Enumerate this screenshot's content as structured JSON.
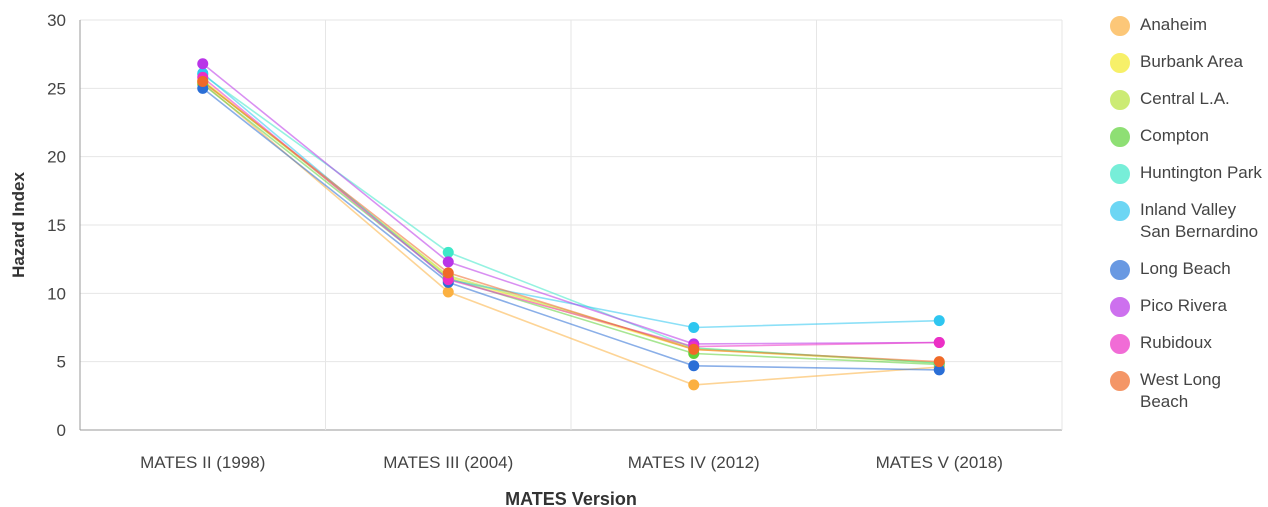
{
  "chart_data": {
    "type": "line",
    "title": "",
    "xlabel": "MATES Version",
    "ylabel": "Hazard Index",
    "categories": [
      "MATES II (1998)",
      "MATES III (2004)",
      "MATES IV (2012)",
      "MATES V (2018)"
    ],
    "ylim": [
      0,
      30
    ],
    "yticks": [
      0,
      5,
      10,
      15,
      20,
      25,
      30
    ],
    "grid": true,
    "legend_position": "right",
    "series": [
      {
        "name": "Anaheim",
        "color": "#fbb040",
        "values": [
          25.4,
          10.1,
          3.3,
          4.6
        ]
      },
      {
        "name": "Burbank Area",
        "color": "#f5ea2a",
        "values": [
          25.6,
          11.2,
          5.9,
          4.9
        ]
      },
      {
        "name": "Central L.A.",
        "color": "#b7e33a",
        "values": [
          25.5,
          11.3,
          6.0,
          4.9
        ]
      },
      {
        "name": "Compton",
        "color": "#5fd23a",
        "values": [
          25.3,
          11.1,
          5.6,
          4.8
        ]
      },
      {
        "name": "Huntington Park",
        "color": "#3ee8c8",
        "values": [
          26.0,
          13.0,
          6.0,
          4.9
        ]
      },
      {
        "name": "Inland Valley San Bernardino",
        "color": "#2ec6f0",
        "values": [
          26.1,
          11.0,
          7.5,
          8.0
        ]
      },
      {
        "name": "Long Beach",
        "color": "#2a6ed6",
        "values": [
          25.0,
          10.8,
          4.7,
          4.4
        ]
      },
      {
        "name": "Pico Rivera",
        "color": "#b935e8",
        "values": [
          26.8,
          12.3,
          6.3,
          6.4
        ]
      },
      {
        "name": "Rubidoux",
        "color": "#ec2fc5",
        "values": [
          25.8,
          11.0,
          6.1,
          6.4
        ]
      },
      {
        "name": "West Long Beach",
        "color": "#f06a28",
        "values": [
          25.5,
          11.5,
          5.9,
          5.0
        ]
      }
    ]
  }
}
